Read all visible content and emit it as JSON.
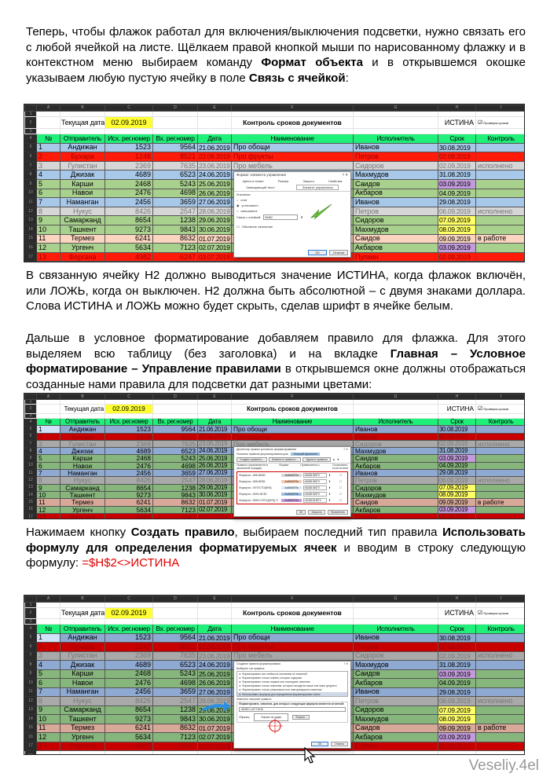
{
  "paragraphs": [
    {
      "parts": [
        {
          "t": "Теперь, чтобы флажок работал для включения/выключения подсветки, нужно связать его с любой ячейкой на листе. Щёлкаем правой кнопкой мыши по нарисованному флажку и в контекстном меню выбираем команду "
        },
        {
          "t": "Формат объекта",
          "b": true
        },
        {
          "t": " и в открывшемся окошке указываем любую пустую ячейку в поле "
        },
        {
          "t": "Связь с ячейкой",
          "b": true
        },
        {
          "t": ":"
        }
      ]
    },
    {
      "parts": [
        {
          "t": "В связанную ячейку H2 должно выводиться значение ИСТИНА, когда флажок включён, или ЛОЖЬ, когда он выключен. H2 должна быть абсолютной – с двумя знаками доллара. Слова ИСТИНА и ЛОЖЬ можно будет скрыть, сделав шрифт в ячейке белым."
        }
      ]
    },
    {
      "parts": [
        {
          "t": "Дальше в условное форматирование добавляем правило для флажка. Для этого выделяем всю таблицу (без заголовка) и на вкладке "
        },
        {
          "t": "Главная – Условное форматирование – Управление правилами",
          "b": true
        },
        {
          "t": " в открывшемся окне должны отображаться созданные нами правила для подсветки дат разными цветами:"
        }
      ]
    },
    {
      "parts": [
        {
          "t": "Нажимаем кнопку "
        },
        {
          "t": "Создать правило",
          "b": true
        },
        {
          "t": ", выбираем последний тип правила "
        },
        {
          "t": "Использовать формулу для определения форматируемых ячеек",
          "b": true
        },
        {
          "t": " и вводим в строку следующую формулу: "
        },
        {
          "t": "=$H$2<>ИСТИНА",
          "red": true
        }
      ]
    }
  ],
  "sheet": {
    "col_letters": [
      "A",
      "B",
      "C",
      "D",
      "E",
      "F",
      "G",
      "H",
      "I"
    ],
    "current_date_label": "Текущая дата",
    "current_date": "02.09.2019",
    "title": "Контроль сроков документов",
    "h2_value": "ИСТИНА",
    "checkbox_label": "Проверка сроков",
    "headers": [
      "№",
      "Отправитель",
      "Исх. рег.номер",
      "Вх. рег.номер",
      "Дата",
      "Наименование",
      "Исполнитель",
      "Срок",
      "Контроль"
    ],
    "rows": [
      {
        "c": [
          "1",
          "Андижан",
          "1523",
          "9564",
          "21.06.2019",
          "Про обощи",
          "Иванов",
          "30.08.2019",
          ""
        ],
        "s": "blue"
      },
      {
        "c": [
          "2",
          "Бухара",
          "1248",
          "8521",
          "22.06.2019",
          "Про фрукты",
          "Петров",
          "02.09.2019",
          ""
        ],
        "s": "red"
      },
      {
        "c": [
          "3",
          "Гулистан",
          "2369",
          "7635",
          "23.06.2019",
          "Про мебель",
          "Сидоров",
          "02.09.2019",
          "исполнено"
        ],
        "s": "grey"
      },
      {
        "c": [
          "4",
          "Джизак",
          "4689",
          "6523",
          "24.06.2019",
          "",
          "Махмудов",
          "31.08.2019",
          ""
        ],
        "s": "blue"
      },
      {
        "c": [
          "5",
          "Карши",
          "2468",
          "5243",
          "25.06.2019",
          "",
          "Саидов",
          "03.09.2019",
          ""
        ],
        "s": "green",
        "d": "purple"
      },
      {
        "c": [
          "6",
          "Навои",
          "2476",
          "4698",
          "26.06.2019",
          "",
          "Акбаров",
          "04.09.2019",
          ""
        ],
        "s": "green"
      },
      {
        "c": [
          "7",
          "Наманган",
          "2456",
          "3659",
          "27.06.2019",
          "",
          "Иванов",
          "29.08.2019",
          ""
        ],
        "s": "blue"
      },
      {
        "c": [
          "8",
          "Нукус",
          "8426",
          "2547",
          "28.06.2019",
          "",
          "Петров",
          "06.09.2019",
          "исполнено"
        ],
        "s": "grey"
      },
      {
        "c": [
          "9",
          "Самарканд",
          "8654",
          "1238",
          "29.06.2019",
          "",
          "Сидоров",
          "07.09.2019",
          ""
        ],
        "s": "green",
        "d": "yellow"
      },
      {
        "c": [
          "10",
          "Ташкент",
          "9273",
          "9843",
          "30.06.2019",
          "",
          "Махмудов",
          "08.09.2019",
          ""
        ],
        "s": "green",
        "d": "yellow"
      },
      {
        "c": [
          "11",
          "Термез",
          "6241",
          "8632",
          "01.07.2019",
          "",
          "Саидов",
          "09.09.2019",
          "в работе"
        ],
        "s": "peach"
      },
      {
        "c": [
          "12",
          "Ургенч",
          "5634",
          "7123",
          "02.07.2019",
          "",
          "Акбаров",
          "03.09.2019",
          ""
        ],
        "s": "green",
        "d": "purple"
      },
      {
        "c": [
          "13",
          "Фергана",
          "4982",
          "6247",
          "03.07.2019",
          "",
          "Пупкин",
          "02.09.2019",
          ""
        ],
        "s": "red"
      }
    ]
  },
  "colors": {
    "header": "#1ff07a",
    "yellow": "#ffff33",
    "purple": "#c39bdc",
    "date_yellow": "#ffff66"
  },
  "dialog1": {
    "title": "Формат элемента управления",
    "help": "?",
    "close": "✕",
    "tabs": [
      "Цвета и линии",
      "Размер",
      "Защита",
      "Свойства"
    ],
    "tabs2": [
      "Замещающий текст",
      "Элемент управления"
    ],
    "value_label": "Значение",
    "options": [
      "снят",
      "установлен",
      "смешанное"
    ],
    "link_label": "Связь с ячейкой:",
    "link_value": "$H$2",
    "shading": "Объемное затенение",
    "ok": "ОК",
    "cancel": "Отмена"
  },
  "dialog2": {
    "title": "Диспетчер правил условного форматирования",
    "help": "?",
    "close": "✕",
    "show_label": "Показать правила форматирования для:",
    "show_value": "Текущий фрагмент",
    "create": "Создать правило...",
    "edit": "Изменить правило...",
    "delete": "Удалить правило",
    "cols": [
      "Правило (применяется в указанном порядке)",
      "Формат",
      "Применяется к",
      "Остановить, если истина"
    ],
    "rules": [
      {
        "f": "Формула: =$I5=$K$2",
        "fmt": "AaBbБбЯя",
        "to": "=$A$5:$I$70",
        "bg": "#d9d9d9"
      },
      {
        "f": "Формула: =$I5=$K$1",
        "fmt": "AaBbБбЯя",
        "to": "=$A$5:$I$70",
        "bg": "#f8cbad"
      },
      {
        "f": "Формула: =ЕПУСТО($H5)",
        "fmt": "AaBbБбЯя",
        "to": "=$A$5:$I$70",
        "bg": "#ddebf7"
      },
      {
        "f": "Формула: =$H5=$C$2",
        "fmt": "AaBbБбЯя",
        "to": "=$A$5:$I$70",
        "bg": "#9dc3e6"
      },
      {
        "f": "Формула: =$H5<СЕГОДНЯ()+1",
        "fmt": "AaBbБбЯя",
        "to": "=$H$5:$H$70",
        "bg": "#c39bdc"
      }
    ],
    "ok": "ОК",
    "close_btn": "Закрыть",
    "apply": "Применить"
  },
  "dialog3": {
    "title": "Создание правила форматирования",
    "help": "?",
    "close": "✕",
    "choose": "Выберите тип правила:",
    "types": [
      "► Форматировать все ячейки на основании их значений",
      "► Форматировать только ячейки, которые содержат",
      "► Форматировать только первые или последние значения",
      "► Форматировать только значения, которые находятся выше или ниже среднего",
      "► Форматировать только уникальные или повторяющиеся значения",
      "► Использовать формулу для определения форматируемых ячеек"
    ],
    "edit": "Измените описание правила:",
    "formula_label": "Форматировать значения, для которых следующая формула является истинной:",
    "formula": "=$H$2<>ИСТИНА",
    "sample": "Образец:",
    "sample_text": "Формат не задан",
    "format": "Формат...",
    "ok": "ОК",
    "cancel": "Отмена"
  },
  "footer": "Veseliy.4el"
}
